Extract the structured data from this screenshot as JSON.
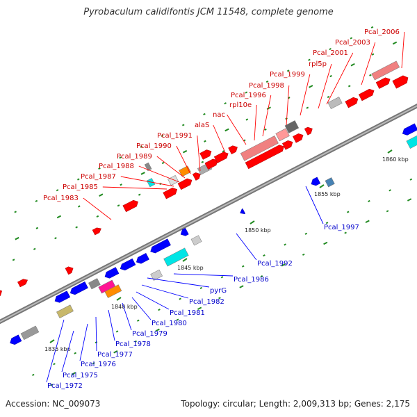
{
  "title": "Pyrobaculum calidifontis JCM 11548, complete genome",
  "footer": {
    "accession": "Accession: NC_009073",
    "topology": "Topology: circular; Length: 2,009,313 bp; Genes: 2,175"
  },
  "colors": {
    "forward_gene": "#ff0000",
    "reverse_gene": "#0000ff",
    "label_forward": "#cc0000",
    "label_reverse": "#0000cc",
    "backbone": "#888888",
    "pseudo": "#f08080",
    "rna": "#00e5e5",
    "gc": "#228b22"
  },
  "scale_ticks": [
    "1835 kbp",
    "1840 kbp",
    "1845 kbp",
    "1850 kbp",
    "1855 kbp",
    "1860 kbp"
  ],
  "forward_labels": [
    "Pcal_1983",
    "Pcal_1985",
    "Pcal_1987",
    "Pcal_1988",
    "Pcal_1989",
    "Pcal_1990",
    "Pcal_1991",
    "alaS",
    "nac",
    "rpl10e",
    "Pcal_1996",
    "Pcal_1998",
    "Pcal_1999",
    "rpl5p",
    "Pcal_2001",
    "Pcal_2003",
    "Pcal_2006"
  ],
  "reverse_labels": [
    "Pcal_1972",
    "Pcal_1975",
    "Pcal_1976",
    "Pcal_1977",
    "Pcal_1978",
    "Pcal_1979",
    "Pcal_1980",
    "Pcal_1981",
    "Pcal_1982",
    "pyrG",
    "Pcal_1986",
    "Pcal_1992",
    "Pcal_1997"
  ]
}
